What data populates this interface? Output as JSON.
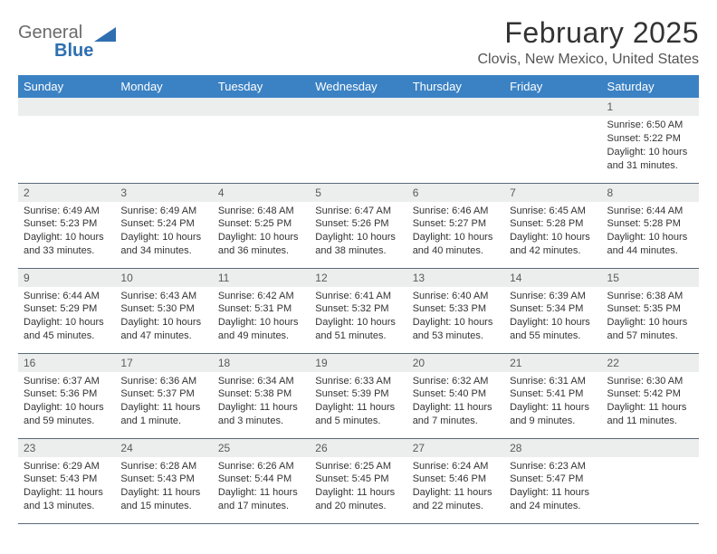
{
  "logo": {
    "text_general": "General",
    "text_blue": "Blue",
    "general_color": "#6a6a6a",
    "blue_color": "#2f6fb0",
    "triangle_color": "#2f6fb0"
  },
  "title": "February 2025",
  "location": "Clovis, New Mexico, United States",
  "header_bg": "#3b82c4",
  "daynum_bg": "#eceded",
  "border_color": "#5a6a7a",
  "text_color": "#333333",
  "day_names": [
    "Sunday",
    "Monday",
    "Tuesday",
    "Wednesday",
    "Thursday",
    "Friday",
    "Saturday"
  ],
  "weeks": [
    [
      null,
      null,
      null,
      null,
      null,
      null,
      {
        "n": "1",
        "sr": "Sunrise: 6:50 AM",
        "ss": "Sunset: 5:22 PM",
        "d1": "Daylight: 10 hours",
        "d2": "and 31 minutes."
      }
    ],
    [
      {
        "n": "2",
        "sr": "Sunrise: 6:49 AM",
        "ss": "Sunset: 5:23 PM",
        "d1": "Daylight: 10 hours",
        "d2": "and 33 minutes."
      },
      {
        "n": "3",
        "sr": "Sunrise: 6:49 AM",
        "ss": "Sunset: 5:24 PM",
        "d1": "Daylight: 10 hours",
        "d2": "and 34 minutes."
      },
      {
        "n": "4",
        "sr": "Sunrise: 6:48 AM",
        "ss": "Sunset: 5:25 PM",
        "d1": "Daylight: 10 hours",
        "d2": "and 36 minutes."
      },
      {
        "n": "5",
        "sr": "Sunrise: 6:47 AM",
        "ss": "Sunset: 5:26 PM",
        "d1": "Daylight: 10 hours",
        "d2": "and 38 minutes."
      },
      {
        "n": "6",
        "sr": "Sunrise: 6:46 AM",
        "ss": "Sunset: 5:27 PM",
        "d1": "Daylight: 10 hours",
        "d2": "and 40 minutes."
      },
      {
        "n": "7",
        "sr": "Sunrise: 6:45 AM",
        "ss": "Sunset: 5:28 PM",
        "d1": "Daylight: 10 hours",
        "d2": "and 42 minutes."
      },
      {
        "n": "8",
        "sr": "Sunrise: 6:44 AM",
        "ss": "Sunset: 5:28 PM",
        "d1": "Daylight: 10 hours",
        "d2": "and 44 minutes."
      }
    ],
    [
      {
        "n": "9",
        "sr": "Sunrise: 6:44 AM",
        "ss": "Sunset: 5:29 PM",
        "d1": "Daylight: 10 hours",
        "d2": "and 45 minutes."
      },
      {
        "n": "10",
        "sr": "Sunrise: 6:43 AM",
        "ss": "Sunset: 5:30 PM",
        "d1": "Daylight: 10 hours",
        "d2": "and 47 minutes."
      },
      {
        "n": "11",
        "sr": "Sunrise: 6:42 AM",
        "ss": "Sunset: 5:31 PM",
        "d1": "Daylight: 10 hours",
        "d2": "and 49 minutes."
      },
      {
        "n": "12",
        "sr": "Sunrise: 6:41 AM",
        "ss": "Sunset: 5:32 PM",
        "d1": "Daylight: 10 hours",
        "d2": "and 51 minutes."
      },
      {
        "n": "13",
        "sr": "Sunrise: 6:40 AM",
        "ss": "Sunset: 5:33 PM",
        "d1": "Daylight: 10 hours",
        "d2": "and 53 minutes."
      },
      {
        "n": "14",
        "sr": "Sunrise: 6:39 AM",
        "ss": "Sunset: 5:34 PM",
        "d1": "Daylight: 10 hours",
        "d2": "and 55 minutes."
      },
      {
        "n": "15",
        "sr": "Sunrise: 6:38 AM",
        "ss": "Sunset: 5:35 PM",
        "d1": "Daylight: 10 hours",
        "d2": "and 57 minutes."
      }
    ],
    [
      {
        "n": "16",
        "sr": "Sunrise: 6:37 AM",
        "ss": "Sunset: 5:36 PM",
        "d1": "Daylight: 10 hours",
        "d2": "and 59 minutes."
      },
      {
        "n": "17",
        "sr": "Sunrise: 6:36 AM",
        "ss": "Sunset: 5:37 PM",
        "d1": "Daylight: 11 hours",
        "d2": "and 1 minute."
      },
      {
        "n": "18",
        "sr": "Sunrise: 6:34 AM",
        "ss": "Sunset: 5:38 PM",
        "d1": "Daylight: 11 hours",
        "d2": "and 3 minutes."
      },
      {
        "n": "19",
        "sr": "Sunrise: 6:33 AM",
        "ss": "Sunset: 5:39 PM",
        "d1": "Daylight: 11 hours",
        "d2": "and 5 minutes."
      },
      {
        "n": "20",
        "sr": "Sunrise: 6:32 AM",
        "ss": "Sunset: 5:40 PM",
        "d1": "Daylight: 11 hours",
        "d2": "and 7 minutes."
      },
      {
        "n": "21",
        "sr": "Sunrise: 6:31 AM",
        "ss": "Sunset: 5:41 PM",
        "d1": "Daylight: 11 hours",
        "d2": "and 9 minutes."
      },
      {
        "n": "22",
        "sr": "Sunrise: 6:30 AM",
        "ss": "Sunset: 5:42 PM",
        "d1": "Daylight: 11 hours",
        "d2": "and 11 minutes."
      }
    ],
    [
      {
        "n": "23",
        "sr": "Sunrise: 6:29 AM",
        "ss": "Sunset: 5:43 PM",
        "d1": "Daylight: 11 hours",
        "d2": "and 13 minutes."
      },
      {
        "n": "24",
        "sr": "Sunrise: 6:28 AM",
        "ss": "Sunset: 5:43 PM",
        "d1": "Daylight: 11 hours",
        "d2": "and 15 minutes."
      },
      {
        "n": "25",
        "sr": "Sunrise: 6:26 AM",
        "ss": "Sunset: 5:44 PM",
        "d1": "Daylight: 11 hours",
        "d2": "and 17 minutes."
      },
      {
        "n": "26",
        "sr": "Sunrise: 6:25 AM",
        "ss": "Sunset: 5:45 PM",
        "d1": "Daylight: 11 hours",
        "d2": "and 20 minutes."
      },
      {
        "n": "27",
        "sr": "Sunrise: 6:24 AM",
        "ss": "Sunset: 5:46 PM",
        "d1": "Daylight: 11 hours",
        "d2": "and 22 minutes."
      },
      {
        "n": "28",
        "sr": "Sunrise: 6:23 AM",
        "ss": "Sunset: 5:47 PM",
        "d1": "Daylight: 11 hours",
        "d2": "and 24 minutes."
      },
      null
    ]
  ]
}
